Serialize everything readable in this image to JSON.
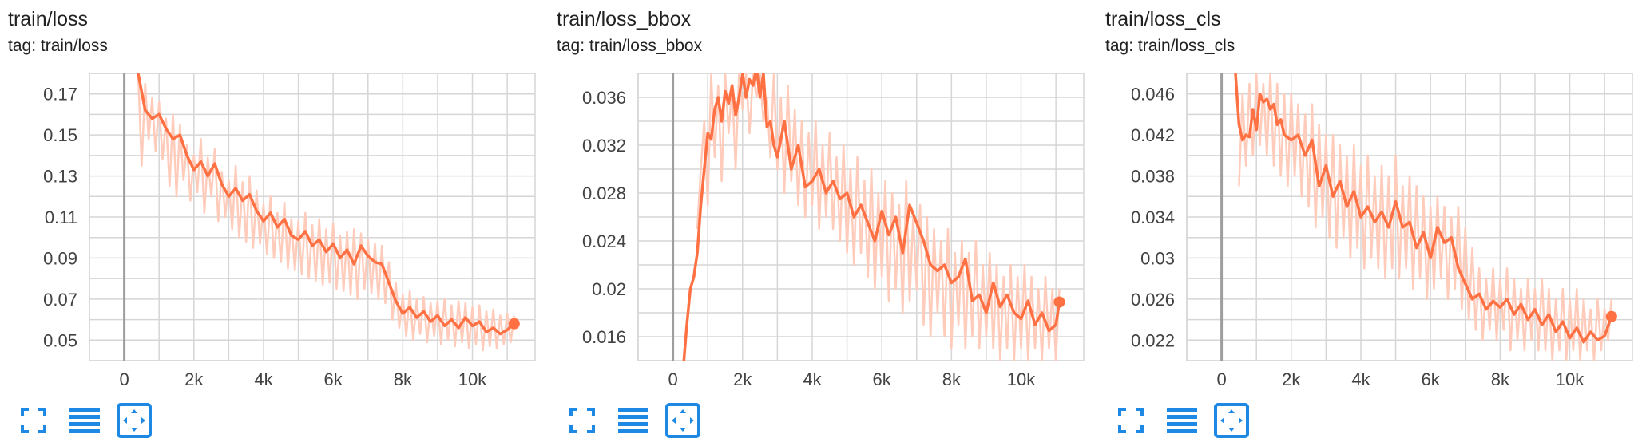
{
  "colors": {
    "line": "#ff7043",
    "raw": "#ffccbc",
    "grid": "#d6d6d6",
    "axis": "#9e9e9e",
    "zero_line": "#9e9e9e",
    "tick_text": "#424242",
    "icon": "#1e88e5"
  },
  "icons": [
    "fullscreen-icon",
    "toggle-log-y-icon",
    "fit-domain-icon"
  ],
  "cards": [
    {
      "title": "train/loss",
      "tag": "tag: train/loss"
    },
    {
      "title": "train/loss_bbox",
      "tag": "tag: train/loss_bbox"
    },
    {
      "title": "train/loss_cls",
      "tag": "tag: train/loss_cls"
    }
  ],
  "chart_data": [
    {
      "type": "line",
      "title": "train/loss",
      "xlim": [
        -1000,
        11800
      ],
      "ylim": [
        0.04,
        0.18
      ],
      "xticks": [
        0,
        2000,
        4000,
        6000,
        8000,
        10000
      ],
      "xtick_labels": [
        "0",
        "2k",
        "4k",
        "6k",
        "8k",
        "10k"
      ],
      "yticks": [
        0.05,
        0.07,
        0.09,
        0.11,
        0.13,
        0.15,
        0.17
      ],
      "ytick_labels": [
        "0.05",
        "0.07",
        "0.09",
        "0.11",
        "0.13",
        "0.15",
        "0.17"
      ],
      "grid": true,
      "smoothed": {
        "x": [
          400,
          600,
          800,
          1000,
          1200,
          1400,
          1600,
          1800,
          2000,
          2200,
          2400,
          2600,
          2800,
          3000,
          3200,
          3400,
          3600,
          3800,
          4000,
          4200,
          4400,
          4600,
          4800,
          5000,
          5200,
          5400,
          5600,
          5800,
          6000,
          6200,
          6400,
          6600,
          6800,
          7000,
          7200,
          7400,
          7600,
          7800,
          8000,
          8200,
          8400,
          8600,
          8800,
          9000,
          9200,
          9400,
          9600,
          9800,
          10000,
          10200,
          10400,
          10600,
          10800,
          11000,
          11200
        ],
        "y": [
          0.18,
          0.162,
          0.158,
          0.16,
          0.153,
          0.148,
          0.15,
          0.14,
          0.133,
          0.137,
          0.13,
          0.136,
          0.126,
          0.12,
          0.124,
          0.118,
          0.121,
          0.113,
          0.108,
          0.112,
          0.105,
          0.109,
          0.101,
          0.099,
          0.103,
          0.096,
          0.099,
          0.093,
          0.097,
          0.09,
          0.094,
          0.087,
          0.096,
          0.091,
          0.088,
          0.087,
          0.078,
          0.069,
          0.063,
          0.066,
          0.061,
          0.064,
          0.059,
          0.062,
          0.057,
          0.06,
          0.056,
          0.061,
          0.057,
          0.059,
          0.054,
          0.056,
          0.053,
          0.055,
          0.058
        ]
      },
      "raw": {
        "x": [
          400,
          500,
          600,
          700,
          800,
          900,
          1000,
          1100,
          1200,
          1300,
          1400,
          1500,
          1600,
          1700,
          1800,
          1900,
          2000,
          2100,
          2200,
          2300,
          2400,
          2500,
          2600,
          2700,
          2800,
          2900,
          3000,
          3100,
          3200,
          3300,
          3400,
          3500,
          3600,
          3700,
          3800,
          3900,
          4000,
          4100,
          4200,
          4300,
          4400,
          4500,
          4600,
          4700,
          4800,
          4900,
          5000,
          5100,
          5200,
          5300,
          5400,
          5500,
          5600,
          5700,
          5800,
          5900,
          6000,
          6100,
          6200,
          6300,
          6400,
          6500,
          6600,
          6700,
          6800,
          6900,
          7000,
          7100,
          7200,
          7300,
          7400,
          7500,
          7600,
          7700,
          7800,
          7900,
          8000,
          8100,
          8200,
          8300,
          8400,
          8500,
          8600,
          8700,
          8800,
          8900,
          9000,
          9100,
          9200,
          9300,
          9400,
          9500,
          9600,
          9700,
          9800,
          9900,
          10000,
          10100,
          10200,
          10300,
          10400,
          10500,
          10600,
          10700,
          10800,
          10900,
          11000,
          11100,
          11200
        ],
        "y": [
          0.18,
          0.135,
          0.175,
          0.148,
          0.168,
          0.142,
          0.166,
          0.138,
          0.158,
          0.125,
          0.16,
          0.12,
          0.155,
          0.128,
          0.145,
          0.118,
          0.14,
          0.122,
          0.148,
          0.112,
          0.139,
          0.12,
          0.143,
          0.108,
          0.132,
          0.11,
          0.128,
          0.104,
          0.135,
          0.1,
          0.127,
          0.098,
          0.13,
          0.095,
          0.123,
          0.097,
          0.116,
          0.092,
          0.12,
          0.09,
          0.112,
          0.088,
          0.117,
          0.085,
          0.109,
          0.084,
          0.108,
          0.082,
          0.112,
          0.08,
          0.106,
          0.079,
          0.109,
          0.077,
          0.104,
          0.078,
          0.107,
          0.075,
          0.101,
          0.074,
          0.103,
          0.072,
          0.104,
          0.07,
          0.102,
          0.075,
          0.099,
          0.073,
          0.097,
          0.07,
          0.096,
          0.068,
          0.088,
          0.06,
          0.078,
          0.056,
          0.072,
          0.052,
          0.074,
          0.05,
          0.07,
          0.053,
          0.071,
          0.049,
          0.068,
          0.052,
          0.069,
          0.048,
          0.07,
          0.05,
          0.067,
          0.047,
          0.069,
          0.049,
          0.068,
          0.046,
          0.066,
          0.048,
          0.067,
          0.045,
          0.064,
          0.047,
          0.065,
          0.046,
          0.062,
          0.048,
          0.063,
          0.049,
          0.062
        ]
      }
    },
    {
      "type": "line",
      "title": "train/loss_bbox",
      "xlim": [
        -1000,
        11800
      ],
      "ylim": [
        0.014,
        0.038
      ],
      "xticks": [
        0,
        2000,
        4000,
        6000,
        8000,
        10000
      ],
      "xtick_labels": [
        "0",
        "2k",
        "4k",
        "6k",
        "8k",
        "10k"
      ],
      "yticks": [
        0.016,
        0.02,
        0.024,
        0.028,
        0.032,
        0.036
      ],
      "ytick_labels": [
        "0.016",
        "0.02",
        "0.024",
        "0.028",
        "0.032",
        "0.036"
      ],
      "grid": true,
      "smoothed": {
        "x": [
          300,
          400,
          500,
          600,
          700,
          800,
          900,
          1000,
          1100,
          1200,
          1300,
          1400,
          1500,
          1600,
          1700,
          1800,
          1900,
          2000,
          2100,
          2200,
          2300,
          2400,
          2500,
          2600,
          2700,
          2800,
          2900,
          3000,
          3200,
          3400,
          3600,
          3800,
          4000,
          4200,
          4400,
          4600,
          4800,
          5000,
          5200,
          5400,
          5600,
          5800,
          6000,
          6200,
          6400,
          6600,
          6800,
          7000,
          7200,
          7400,
          7600,
          7800,
          8000,
          8200,
          8400,
          8600,
          8800,
          9000,
          9200,
          9400,
          9600,
          9800,
          10000,
          10200,
          10400,
          10600,
          10800,
          11000,
          11100
        ],
        "y": [
          0.0135,
          0.017,
          0.02,
          0.021,
          0.023,
          0.027,
          0.03,
          0.033,
          0.0325,
          0.035,
          0.036,
          0.034,
          0.0365,
          0.0355,
          0.037,
          0.0345,
          0.036,
          0.038,
          0.036,
          0.0375,
          0.037,
          0.0385,
          0.036,
          0.038,
          0.0335,
          0.034,
          0.032,
          0.031,
          0.034,
          0.03,
          0.032,
          0.0285,
          0.029,
          0.03,
          0.028,
          0.029,
          0.0275,
          0.028,
          0.026,
          0.027,
          0.0255,
          0.024,
          0.0265,
          0.0245,
          0.026,
          0.023,
          0.027,
          0.0255,
          0.024,
          0.022,
          0.0215,
          0.022,
          0.0205,
          0.021,
          0.0225,
          0.019,
          0.0195,
          0.018,
          0.0205,
          0.0185,
          0.0195,
          0.018,
          0.0175,
          0.019,
          0.017,
          0.018,
          0.0165,
          0.017,
          0.0189
        ]
      },
      "raw": {
        "x": [
          700,
          800,
          900,
          1000,
          1100,
          1200,
          1300,
          1400,
          1500,
          1600,
          1700,
          1800,
          1900,
          2000,
          2100,
          2200,
          2300,
          2400,
          2500,
          2600,
          2700,
          2800,
          2900,
          3000,
          3100,
          3200,
          3300,
          3400,
          3500,
          3600,
          3700,
          3800,
          3900,
          4000,
          4100,
          4200,
          4300,
          4400,
          4500,
          4600,
          4700,
          4800,
          4900,
          5000,
          5100,
          5200,
          5300,
          5400,
          5500,
          5600,
          5700,
          5800,
          5900,
          6000,
          6100,
          6200,
          6300,
          6400,
          6500,
          6600,
          6700,
          6800,
          6900,
          7000,
          7100,
          7200,
          7300,
          7400,
          7500,
          7600,
          7700,
          7800,
          7900,
          8000,
          8100,
          8200,
          8300,
          8400,
          8500,
          8600,
          8700,
          8800,
          8900,
          9000,
          9100,
          9200,
          9300,
          9400,
          9500,
          9600,
          9700,
          9800,
          9900,
          10000,
          10100,
          10200,
          10300,
          10400,
          10500,
          10600,
          10700,
          10800,
          10900,
          11000,
          11100
        ],
        "y": [
          0.025,
          0.03,
          0.034,
          0.027,
          0.038,
          0.031,
          0.037,
          0.029,
          0.038,
          0.033,
          0.037,
          0.03,
          0.038,
          0.035,
          0.038,
          0.033,
          0.038,
          0.036,
          0.038,
          0.034,
          0.036,
          0.031,
          0.038,
          0.03,
          0.036,
          0.028,
          0.037,
          0.029,
          0.035,
          0.027,
          0.034,
          0.026,
          0.033,
          0.027,
          0.034,
          0.025,
          0.032,
          0.026,
          0.033,
          0.025,
          0.031,
          0.024,
          0.032,
          0.023,
          0.03,
          0.022,
          0.031,
          0.023,
          0.029,
          0.021,
          0.03,
          0.02,
          0.028,
          0.021,
          0.029,
          0.019,
          0.028,
          0.02,
          0.027,
          0.018,
          0.029,
          0.019,
          0.026,
          0.02,
          0.027,
          0.017,
          0.026,
          0.016,
          0.025,
          0.018,
          0.024,
          0.016,
          0.025,
          0.015,
          0.023,
          0.017,
          0.024,
          0.015,
          0.023,
          0.016,
          0.024,
          0.015,
          0.022,
          0.016,
          0.023,
          0.015,
          0.022,
          0.014,
          0.021,
          0.015,
          0.022,
          0.014,
          0.021,
          0.015,
          0.022,
          0.014,
          0.021,
          0.015,
          0.02,
          0.014,
          0.021,
          0.015,
          0.02,
          0.014,
          0.02
        ]
      }
    },
    {
      "type": "line",
      "title": "train/loss_cls",
      "xlim": [
        -1000,
        11800
      ],
      "ylim": [
        0.02,
        0.048
      ],
      "xticks": [
        0,
        2000,
        4000,
        6000,
        8000,
        10000
      ],
      "xtick_labels": [
        "0",
        "2k",
        "4k",
        "6k",
        "8k",
        "10k"
      ],
      "yticks": [
        0.022,
        0.026,
        0.03,
        0.034,
        0.038,
        0.042,
        0.046
      ],
      "ytick_labels": [
        "0.022",
        "0.026",
        "0.03",
        "0.034",
        "0.038",
        "0.042",
        "0.046"
      ],
      "grid": true,
      "smoothed": {
        "x": [
          400,
          500,
          600,
          700,
          800,
          900,
          1000,
          1100,
          1200,
          1300,
          1400,
          1500,
          1600,
          1700,
          1800,
          2000,
          2200,
          2400,
          2600,
          2800,
          3000,
          3200,
          3400,
          3600,
          3800,
          4000,
          4200,
          4400,
          4600,
          4800,
          5000,
          5200,
          5400,
          5600,
          5800,
          6000,
          6200,
          6400,
          6600,
          6800,
          7000,
          7200,
          7400,
          7600,
          7800,
          8000,
          8200,
          8400,
          8600,
          8800,
          9000,
          9200,
          9400,
          9600,
          9800,
          10000,
          10200,
          10400,
          10600,
          10800,
          11000,
          11200
        ],
        "y": [
          0.048,
          0.043,
          0.0415,
          0.042,
          0.0418,
          0.0445,
          0.0425,
          0.046,
          0.0452,
          0.0455,
          0.0445,
          0.045,
          0.043,
          0.0435,
          0.042,
          0.0415,
          0.042,
          0.04,
          0.0415,
          0.037,
          0.039,
          0.036,
          0.0375,
          0.035,
          0.0365,
          0.034,
          0.035,
          0.0335,
          0.0345,
          0.033,
          0.0355,
          0.033,
          0.0335,
          0.031,
          0.0325,
          0.03,
          0.033,
          0.0315,
          0.032,
          0.029,
          0.0275,
          0.026,
          0.0265,
          0.025,
          0.0258,
          0.0252,
          0.026,
          0.0245,
          0.0255,
          0.024,
          0.025,
          0.0235,
          0.0245,
          0.0228,
          0.0238,
          0.0222,
          0.0232,
          0.0218,
          0.0228,
          0.022,
          0.0224,
          0.0243
        ]
      },
      "raw": {
        "x": [
          500,
          600,
          700,
          800,
          900,
          1000,
          1100,
          1200,
          1300,
          1400,
          1500,
          1600,
          1700,
          1800,
          1900,
          2000,
          2100,
          2200,
          2300,
          2400,
          2500,
          2600,
          2700,
          2800,
          2900,
          3000,
          3100,
          3200,
          3300,
          3400,
          3500,
          3600,
          3700,
          3800,
          3900,
          4000,
          4100,
          4200,
          4300,
          4400,
          4500,
          4600,
          4700,
          4800,
          4900,
          5000,
          5100,
          5200,
          5300,
          5400,
          5500,
          5600,
          5700,
          5800,
          5900,
          6000,
          6100,
          6200,
          6300,
          6400,
          6500,
          6600,
          6700,
          6800,
          6900,
          7000,
          7100,
          7200,
          7300,
          7400,
          7500,
          7600,
          7700,
          7800,
          7900,
          8000,
          8100,
          8200,
          8300,
          8400,
          8500,
          8600,
          8700,
          8800,
          8900,
          9000,
          9100,
          9200,
          9300,
          9400,
          9500,
          9600,
          9700,
          9800,
          9900,
          10000,
          10100,
          10200,
          10300,
          10400,
          10500,
          10600,
          10700,
          10800,
          10900,
          11000,
          11100,
          11200
        ],
        "y": [
          0.037,
          0.046,
          0.039,
          0.047,
          0.04,
          0.048,
          0.041,
          0.047,
          0.04,
          0.048,
          0.039,
          0.047,
          0.038,
          0.046,
          0.037,
          0.046,
          0.038,
          0.045,
          0.036,
          0.044,
          0.035,
          0.045,
          0.033,
          0.043,
          0.034,
          0.042,
          0.032,
          0.042,
          0.031,
          0.041,
          0.032,
          0.04,
          0.03,
          0.041,
          0.031,
          0.039,
          0.029,
          0.04,
          0.03,
          0.038,
          0.029,
          0.039,
          0.028,
          0.038,
          0.029,
          0.04,
          0.028,
          0.037,
          0.029,
          0.038,
          0.027,
          0.037,
          0.028,
          0.036,
          0.026,
          0.035,
          0.027,
          0.036,
          0.028,
          0.035,
          0.026,
          0.034,
          0.027,
          0.035,
          0.025,
          0.033,
          0.024,
          0.031,
          0.023,
          0.029,
          0.022,
          0.028,
          0.023,
          0.029,
          0.022,
          0.028,
          0.023,
          0.029,
          0.021,
          0.028,
          0.022,
          0.027,
          0.021,
          0.028,
          0.022,
          0.027,
          0.021,
          0.028,
          0.021,
          0.027,
          0.02,
          0.026,
          0.021,
          0.027,
          0.02,
          0.026,
          0.021,
          0.027,
          0.02,
          0.026,
          0.021,
          0.025,
          0.02,
          0.026,
          0.021,
          0.025,
          0.022,
          0.026
        ]
      }
    }
  ]
}
